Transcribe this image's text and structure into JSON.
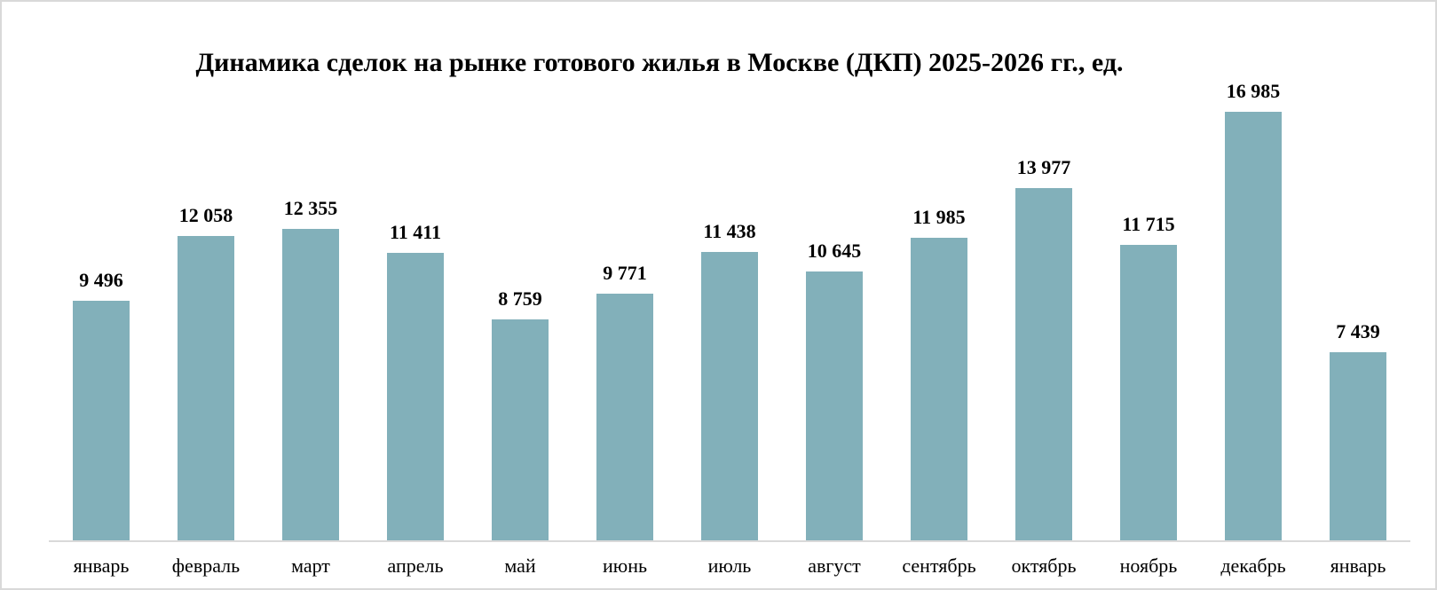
{
  "page": {
    "background": "#ffffff",
    "frame_border_color": "#d9d9d9"
  },
  "chart_data": {
    "type": "bar",
    "title": "Динамика сделок на рынке готового жилья в Москве (ДКП) 2025-2026 гг., ед.",
    "categories": [
      "январь",
      "февраль",
      "март",
      "апрель",
      "май",
      "июнь",
      "июль",
      "август",
      "сентябрь",
      "октябрь",
      "ноябрь",
      "декабрь",
      "январь"
    ],
    "values": [
      9496,
      12058,
      12355,
      11411,
      8759,
      9771,
      11438,
      10645,
      11985,
      13977,
      11715,
      16985,
      7439
    ],
    "value_labels": [
      "9 496",
      "12 058",
      "12 355",
      "11 411",
      "8 759",
      "9 771",
      "11 438",
      "10 645",
      "11 985",
      "13 977",
      "11 715",
      "16 985",
      "7 439"
    ],
    "xlabel": "",
    "ylabel": "",
    "ylim": [
      0,
      17000
    ],
    "grid": false,
    "legend": false,
    "data_labels_visible": true,
    "bar_color": "#82b0ba",
    "axis_line_color": "#d9d9d9",
    "text_color": "#000000",
    "y_axis_ticks_visible": false
  }
}
